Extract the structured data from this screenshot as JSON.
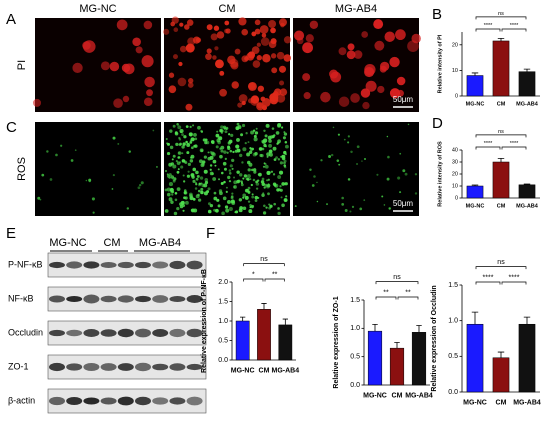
{
  "figure": {
    "panel_labels": [
      "A",
      "B",
      "C",
      "D",
      "E",
      "F"
    ],
    "image_columns": [
      "MG-NC",
      "CM",
      "MG-AB4"
    ],
    "image_rows": [
      "PI",
      "ROS"
    ],
    "scale_bars": [
      "50μm",
      "50μm"
    ],
    "blot_groups": [
      "MG-NC",
      "CM",
      "MG-AB4"
    ],
    "blot_rows": [
      "P-NF-κB",
      "NF-κB",
      "Occludin",
      "ZO-1",
      "β-actin"
    ]
  },
  "chart_data": [
    {
      "type": "bar",
      "y_label": "Relative intensity of PI",
      "categories": [
        "MG-NC",
        "CM",
        "MG-AB4"
      ],
      "values": [
        8,
        21.5,
        9.5
      ],
      "errors": [
        1,
        1,
        1
      ],
      "colors": [
        "#1a1aff",
        "#8b1010",
        "#111111"
      ],
      "ylim": [
        0,
        25
      ],
      "yticks": [
        0,
        10,
        20
      ],
      "comparisons": [
        {
          "pair": [
            "MG-NC",
            "CM"
          ],
          "label": "****"
        },
        {
          "pair": [
            "CM",
            "MG-AB4"
          ],
          "label": "****"
        },
        {
          "pair": [
            "MG-NC",
            "MG-AB4"
          ],
          "label": "ns"
        }
      ]
    },
    {
      "type": "bar",
      "y_label": "Relative intensity of ROS",
      "categories": [
        "MG-NC",
        "CM",
        "MG-AB4"
      ],
      "values": [
        10,
        30,
        11
      ],
      "errors": [
        0.8,
        3,
        0.6
      ],
      "colors": [
        "#1a1aff",
        "#8b1010",
        "#111111"
      ],
      "ylim": [
        0,
        40
      ],
      "yticks": [
        0,
        10,
        20,
        30,
        40
      ],
      "comparisons": [
        {
          "pair": [
            "MG-NC",
            "CM"
          ],
          "label": "****"
        },
        {
          "pair": [
            "CM",
            "MG-AB4"
          ],
          "label": "****"
        },
        {
          "pair": [
            "MG-NC",
            "MG-AB4"
          ],
          "label": "ns"
        }
      ]
    },
    {
      "type": "bar",
      "y_label": "Relative expression of P-NF-κB",
      "categories": [
        "MG-NC",
        "CM",
        "MG-AB4"
      ],
      "values": [
        1.0,
        1.3,
        0.9
      ],
      "errors": [
        0.1,
        0.15,
        0.15
      ],
      "colors": [
        "#1a1aff",
        "#8b1010",
        "#111111"
      ],
      "ylim": [
        0,
        2
      ],
      "yticks": [
        {
          "value": 0,
          "label": "0.0"
        },
        0.5,
        {
          "value": 1,
          "label": "1.0"
        },
        1.5,
        {
          "value": 2,
          "label": "2.0"
        }
      ],
      "comparisons": [
        {
          "pair": [
            "MG-NC",
            "CM"
          ],
          "label": "*"
        },
        {
          "pair": [
            "CM",
            "MG-AB4"
          ],
          "label": "**"
        },
        {
          "pair": [
            "MG-NC",
            "MG-AB4"
          ],
          "label": "ns"
        }
      ]
    },
    {
      "type": "bar",
      "y_label": "Relative expression of ZO-1",
      "categories": [
        "MG-NC",
        "CM",
        "MG-AB4"
      ],
      "values": [
        0.95,
        0.65,
        0.93
      ],
      "errors": [
        0.12,
        0.1,
        0.12
      ],
      "colors": [
        "#1a1aff",
        "#8b1010",
        "#111111"
      ],
      "ylim": [
        0,
        1.5
      ],
      "yticks": [
        {
          "value": 0,
          "label": "0.0"
        },
        0.5,
        {
          "value": 1,
          "label": "1.0"
        },
        1.5
      ],
      "comparisons": [
        {
          "pair": [
            "MG-NC",
            "CM"
          ],
          "label": "**"
        },
        {
          "pair": [
            "CM",
            "MG-AB4"
          ],
          "label": "**"
        },
        {
          "pair": [
            "MG-NC",
            "MG-AB4"
          ],
          "label": "ns"
        }
      ]
    },
    {
      "type": "bar",
      "y_label": "Relative expression of Occludin",
      "categories": [
        "MG-NC",
        "CM",
        "MG-AB4"
      ],
      "values": [
        0.95,
        0.48,
        0.95
      ],
      "errors": [
        0.17,
        0.08,
        0.1
      ],
      "colors": [
        "#1a1aff",
        "#8b1010",
        "#111111"
      ],
      "ylim": [
        0,
        1.5
      ],
      "yticks": [
        {
          "value": 0,
          "label": "0.0"
        },
        0.5,
        {
          "value": 1,
          "label": "1.0"
        },
        1.5
      ],
      "comparisons": [
        {
          "pair": [
            "MG-NC",
            "CM"
          ],
          "label": "****"
        },
        {
          "pair": [
            "CM",
            "MG-AB4"
          ],
          "label": "****"
        },
        {
          "pair": [
            "MG-NC",
            "MG-AB4"
          ],
          "label": "ns"
        }
      ]
    }
  ]
}
